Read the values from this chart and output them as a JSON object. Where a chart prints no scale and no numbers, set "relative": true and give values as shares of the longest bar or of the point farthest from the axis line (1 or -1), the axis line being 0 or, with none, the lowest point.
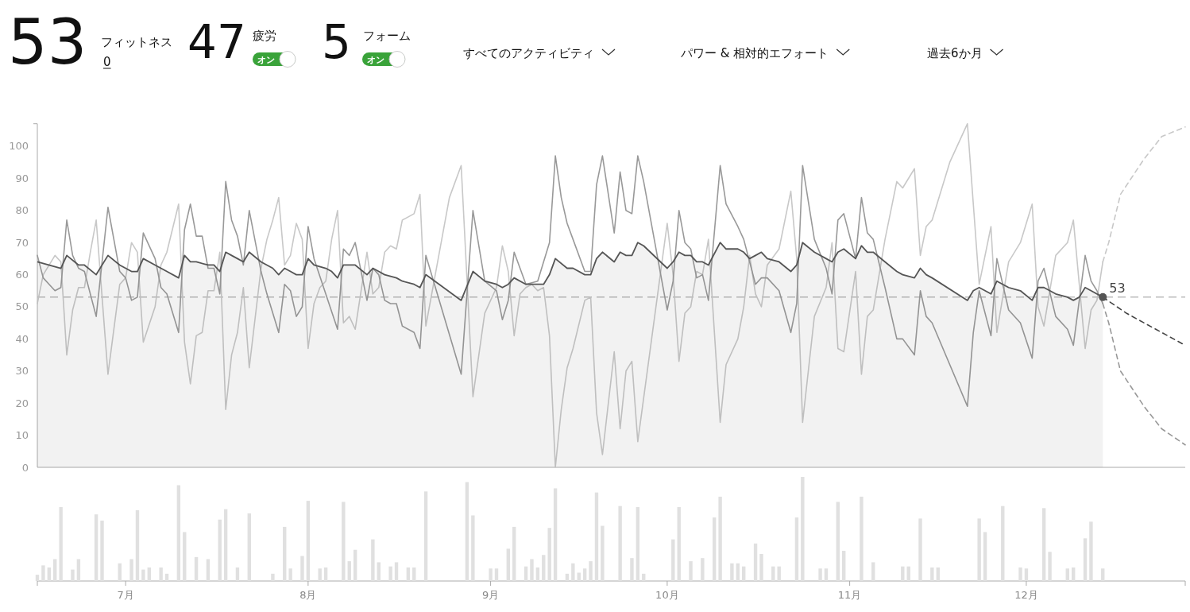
{
  "chart_data": [
    {
      "type": "line",
      "annotations": [
        "53",
        "フィットネス",
        "0",
        "47",
        "疲労",
        "オン",
        "5",
        "フォーム",
        "オン",
        "すべてのアクティビティ",
        "パワー & 相対的エフォート",
        "過去6か月"
      ],
      "xlim": [
        "--06-16",
        "--12-28"
      ],
      "ylim": [
        0,
        107
      ],
      "yticks": [
        0,
        10,
        20,
        30,
        40,
        50,
        60,
        70,
        80,
        90,
        100
      ],
      "tick_labels": "y",
      "ref_lines": [
        {
          "axis": "y",
          "value": 53,
          "label": "53",
          "color": "#bbbbbb",
          "line_style": "dashed"
        }
      ],
      "series": [
        {
          "color": "#c8c8c8",
          "x": [
            "--06-16",
            "--06-17",
            "--06-19",
            "--06-20",
            "--06-21",
            "--06-22",
            "--06-23",
            "--06-24",
            "--06-25",
            "--06-26",
            "--06-28",
            "--06-30",
            "--07-01",
            "--07-02",
            "--07-03",
            "--07-04",
            "--07-06",
            "--07-07",
            "--07-08",
            "--07-10",
            "--07-11",
            "--07-12",
            "--07-13",
            "--07-14",
            "--07-15",
            "--07-16",
            "--07-17",
            "--07-18",
            "--07-19",
            "--07-20",
            "--07-21",
            "--07-22",
            "--07-24",
            "--07-25",
            "--07-26",
            "--07-27",
            "--07-28",
            "--07-29",
            "--07-30",
            "--07-31",
            "--08-01",
            "--08-02",
            "--08-03",
            "--08-04",
            "--08-05",
            "--08-06",
            "--08-07",
            "--08-08",
            "--08-09",
            "--08-11",
            "--08-12",
            "--08-13",
            "--08-14",
            "--08-15",
            "--08-16",
            "--08-17",
            "--08-19",
            "--08-20",
            "--08-21",
            "--08-25",
            "--08-27",
            "--08-29",
            "--08-31",
            "--09-02",
            "--09-03",
            "--09-04",
            "--09-05",
            "--09-06",
            "--09-07",
            "--09-08",
            "--09-09",
            "--09-10",
            "--09-11",
            "--09-12",
            "--09-13",
            "--09-14",
            "--09-15",
            "--09-17",
            "--09-18",
            "--09-19",
            "--09-20",
            "--09-22",
            "--09-23",
            "--09-24",
            "--09-25",
            "--09-26",
            "--10-01",
            "--10-02",
            "--10-03",
            "--10-04",
            "--10-05",
            "--10-06",
            "--10-07",
            "--10-08",
            "--10-10",
            "--10-11",
            "--10-13",
            "--10-14",
            "--10-15",
            "--10-16",
            "--10-17",
            "--10-18",
            "--10-20",
            "--10-22",
            "--10-23",
            "--10-24",
            "--10-26",
            "--10-28",
            "--10-29",
            "--10-30",
            "--10-31",
            "--11-02",
            "--11-03",
            "--11-04",
            "--11-05",
            "--11-07",
            "--11-09",
            "--11-10",
            "--11-12",
            "--11-13",
            "--11-14",
            "--11-15",
            "--11-18",
            "--11-21",
            "--11-23",
            "--11-25",
            "--11-26",
            "--11-28",
            "--11-30",
            "--12-02",
            "--12-03",
            "--12-04",
            "--12-06",
            "--12-08",
            "--12-09",
            "--12-11",
            "--12-12",
            "--12-13",
            "--12-14"
          ],
          "values": [
            51,
            60,
            66,
            64,
            35,
            49,
            56,
            56,
            67,
            77,
            29,
            57,
            59,
            70,
            67,
            39,
            50,
            63,
            67,
            82,
            39,
            26,
            41,
            42,
            55,
            55,
            67,
            18,
            35,
            42,
            56,
            31,
            62,
            71,
            77,
            84,
            63,
            66,
            76,
            71,
            37,
            51,
            56,
            58,
            71,
            80,
            45,
            47,
            43,
            67,
            54,
            56,
            67,
            69,
            68,
            77,
            79,
            85,
            44,
            84,
            94,
            22,
            48,
            56,
            69,
            61,
            41,
            54,
            56,
            57,
            55,
            56,
            41,
            0,
            18,
            31,
            37,
            52,
            53,
            17,
            4,
            36,
            12,
            30,
            33,
            8,
            76,
            60,
            33,
            48,
            50,
            61,
            60,
            71,
            14,
            32,
            40,
            50,
            66,
            54,
            50,
            63,
            68,
            86,
            65,
            14,
            47,
            56,
            70,
            37,
            36,
            61,
            29,
            47,
            49,
            71,
            89,
            87,
            93,
            66,
            75,
            77,
            95,
            107,
            57,
            75,
            42,
            64,
            70,
            82,
            50,
            44,
            66,
            70,
            77,
            37,
            49,
            52,
            64
          ]
        },
        {
          "color": "#999999",
          "x": [
            "--06-16",
            "--06-17",
            "--06-18",
            "--06-19",
            "--06-20",
            "--06-21",
            "--06-22",
            "--06-23",
            "--06-24",
            "--06-26",
            "--06-28",
            "--06-30",
            "--07-01",
            "--07-02",
            "--07-03",
            "--07-04",
            "--07-06",
            "--07-07",
            "--07-08",
            "--07-10",
            "--07-11",
            "--07-12",
            "--07-13",
            "--07-14",
            "--07-15",
            "--07-16",
            "--07-17",
            "--07-18",
            "--07-19",
            "--07-20",
            "--07-21",
            "--07-22",
            "--07-24",
            "--07-25",
            "--07-27",
            "--07-28",
            "--07-29",
            "--07-30",
            "--07-31",
            "--08-01",
            "--08-02",
            "--08-06",
            "--08-07",
            "--08-08",
            "--08-09",
            "--08-11",
            "--08-12",
            "--08-13",
            "--08-14",
            "--08-15",
            "--08-16",
            "--08-17",
            "--08-19",
            "--08-20",
            "--08-21",
            "--08-27",
            "--08-29",
            "--08-31",
            "--09-02",
            "--09-03",
            "--09-04",
            "--09-05",
            "--09-07",
            "--09-09",
            "--09-11",
            "--09-12",
            "--09-13",
            "--09-14",
            "--09-15",
            "--09-17",
            "--09-18",
            "--09-19",
            "--09-20",
            "--09-22",
            "--09-23",
            "--09-24",
            "--09-25",
            "--09-26",
            "--09-27",
            "--10-01",
            "--10-02",
            "--10-03",
            "--10-04",
            "--10-05",
            "--10-06",
            "--10-07",
            "--10-08",
            "--10-10",
            "--10-11",
            "--10-13",
            "--10-14",
            "--10-16",
            "--10-17",
            "--10-18",
            "--10-20",
            "--10-22",
            "--10-23",
            "--10-24",
            "--10-26",
            "--10-28",
            "--10-29",
            "--10-30",
            "--10-31",
            "--11-02",
            "--11-03",
            "--11-04",
            "--11-05",
            "--11-07",
            "--11-09",
            "--11-10",
            "--11-12",
            "--11-13",
            "--11-14",
            "--11-15",
            "--11-21",
            "--11-22",
            "--11-23",
            "--11-25",
            "--11-26",
            "--11-28",
            "--11-30",
            "--12-02",
            "--12-03",
            "--12-04",
            "--12-06",
            "--12-08",
            "--12-09",
            "--12-11",
            "--12-12",
            "--12-13",
            "--12-14"
          ],
          "values": [
            66,
            59,
            57,
            55,
            56,
            77,
            66,
            62,
            61,
            47,
            81,
            61,
            59,
            52,
            53,
            73,
            65,
            56,
            54,
            42,
            74,
            82,
            72,
            72,
            62,
            62,
            54,
            89,
            77,
            72,
            63,
            80,
            61,
            54,
            42,
            57,
            55,
            47,
            50,
            75,
            65,
            43,
            68,
            66,
            70,
            52,
            62,
            60,
            52,
            51,
            51,
            44,
            42,
            37,
            66,
            29,
            80,
            58,
            55,
            46,
            52,
            67,
            57,
            58,
            70,
            97,
            84,
            76,
            71,
            61,
            61,
            88,
            97,
            73,
            92,
            80,
            79,
            97,
            89,
            49,
            58,
            80,
            70,
            68,
            59,
            60,
            52,
            94,
            82,
            75,
            71,
            57,
            59,
            59,
            55,
            42,
            51,
            94,
            71,
            62,
            54,
            77,
            79,
            65,
            84,
            73,
            71,
            56,
            40,
            40,
            35,
            55,
            47,
            45,
            19,
            42,
            55,
            41,
            65,
            49,
            45,
            34,
            58,
            62,
            47,
            43,
            38,
            66,
            58,
            55,
            51
          ]
        },
        {
          "type": "area",
          "color": "#555555",
          "x": [
            "--06-16",
            "--06-20",
            "--06-21",
            "--06-23",
            "--06-24",
            "--06-26",
            "--06-28",
            "--06-30",
            "--07-01",
            "--07-02",
            "--07-03",
            "--07-04",
            "--07-06",
            "--07-07",
            "--07-08",
            "--07-10",
            "--07-11",
            "--07-12",
            "--07-13",
            "--07-15",
            "--07-16",
            "--07-17",
            "--07-18",
            "--07-19",
            "--07-20",
            "--07-21",
            "--07-22",
            "--07-24",
            "--07-26",
            "--07-27",
            "--07-28",
            "--07-29",
            "--07-30",
            "--07-31",
            "--08-01",
            "--08-02",
            "--08-04",
            "--08-05",
            "--08-06",
            "--08-07",
            "--08-08",
            "--08-09",
            "--08-11",
            "--08-12",
            "--08-13",
            "--08-14",
            "--08-16",
            "--08-17",
            "--08-19",
            "--08-20",
            "--08-21",
            "--08-27",
            "--08-29",
            "--08-31",
            "--09-02",
            "--09-03",
            "--09-04",
            "--09-05",
            "--09-07",
            "--09-09",
            "--09-10",
            "--09-11",
            "--09-12",
            "--09-14",
            "--09-15",
            "--09-17",
            "--09-18",
            "--09-19",
            "--09-20",
            "--09-22",
            "--09-23",
            "--09-24",
            "--09-25",
            "--09-26",
            "--09-27",
            "--10-01",
            "--10-02",
            "--10-03",
            "--10-04",
            "--10-05",
            "--10-06",
            "--10-07",
            "--10-08",
            "--10-10",
            "--10-11",
            "--10-13",
            "--10-14",
            "--10-15",
            "--10-16",
            "--10-17",
            "--10-18",
            "--10-20",
            "--10-22",
            "--10-23",
            "--10-24",
            "--10-26",
            "--10-28",
            "--10-29",
            "--10-30",
            "--10-31",
            "--11-02",
            "--11-03",
            "--11-04",
            "--11-05",
            "--11-07",
            "--11-09",
            "--11-10",
            "--11-12",
            "--11-13",
            "--11-14",
            "--11-15",
            "--11-21",
            "--11-22",
            "--11-23",
            "--11-25",
            "--11-26",
            "--11-28",
            "--11-30",
            "--12-02",
            "--12-03",
            "--12-04",
            "--12-06",
            "--12-08",
            "--12-09",
            "--12-10",
            "--12-11",
            "--12-12",
            "--12-14"
          ],
          "values": [
            64,
            62,
            66,
            63,
            63,
            60,
            66,
            63,
            62,
            61,
            61,
            65,
            63,
            62,
            61,
            59,
            66,
            64,
            64,
            63,
            63,
            61,
            67,
            66,
            65,
            64,
            67,
            64,
            62,
            60,
            62,
            61,
            60,
            60,
            65,
            63,
            62,
            61,
            59,
            63,
            63,
            63,
            60,
            62,
            61,
            60,
            59,
            58,
            57,
            56,
            60,
            52,
            61,
            58,
            57,
            56,
            57,
            59,
            57,
            57,
            57,
            60,
            65,
            62,
            62,
            60,
            60,
            65,
            67,
            64,
            67,
            66,
            66,
            70,
            69,
            62,
            64,
            67,
            66,
            66,
            64,
            64,
            63,
            70,
            68,
            68,
            67,
            65,
            66,
            67,
            65,
            64,
            61,
            63,
            70,
            67,
            65,
            64,
            67,
            68,
            65,
            69,
            67,
            67,
            64,
            61,
            60,
            59,
            62,
            60,
            59,
            52,
            55,
            56,
            54,
            58,
            56,
            55,
            52,
            56,
            56,
            54,
            53,
            52,
            53,
            56,
            55,
            53
          ]
        },
        {
          "line_style": "dashed",
          "color": "#c8c8c8",
          "x": [
            "--12-14",
            "--12-15",
            "--12-17",
            "--12-21",
            "--12-24",
            "--12-28"
          ],
          "values": [
            64,
            70,
            85,
            96,
            103,
            106
          ]
        },
        {
          "line_style": "dashed",
          "color": "#999999",
          "x": [
            "--12-14",
            "--12-15",
            "--12-17",
            "--12-21",
            "--12-24",
            "--12-28"
          ],
          "values": [
            51,
            45,
            30,
            19,
            12,
            7
          ]
        },
        {
          "line_style": "dashed",
          "color": "#444444",
          "x": [
            "--12-14",
            "--12-18",
            "--12-23",
            "--12-28"
          ],
          "values": [
            53,
            48,
            43,
            38
          ]
        },
        {
          "type": "scatter",
          "color": "#555555",
          "x": [
            "--12-14"
          ],
          "values": [
            53
          ]
        }
      ]
    },
    {
      "type": "bar",
      "relative": true,
      "color": "#e0e0e0",
      "xlim": [
        "--06-16",
        "--12-28"
      ],
      "tick_labels": "x",
      "xticks": [
        {
          "value": "--06-16",
          "label": null
        },
        {
          "value": "--07-01",
          "label": "7月"
        },
        {
          "value": "--08-01",
          "label": "8月"
        },
        {
          "value": "--09-01",
          "label": "9月"
        },
        {
          "value": "--10-01",
          "label": "10月"
        },
        {
          "value": "--11-01",
          "label": "11月"
        },
        {
          "value": "--12-01",
          "label": "12月"
        },
        {
          "value": "--12-28",
          "label": null
        }
      ],
      "x": [
        "--06-16",
        "--06-17",
        "--06-18",
        "--06-19",
        "--06-20",
        "--06-22",
        "--06-23",
        "--06-26",
        "--06-27",
        "--06-30",
        "--07-02",
        "--07-03",
        "--07-04",
        "--07-05",
        "--07-07",
        "--07-08",
        "--07-10",
        "--07-11",
        "--07-13",
        "--07-15",
        "--07-17",
        "--07-18",
        "--07-20",
        "--07-22",
        "--07-26",
        "--07-28",
        "--07-29",
        "--07-31",
        "--08-01",
        "--08-03",
        "--08-04",
        "--08-07",
        "--08-08",
        "--08-09",
        "--08-12",
        "--08-13",
        "--08-15",
        "--08-16",
        "--08-18",
        "--08-19",
        "--08-21",
        "--08-28",
        "--08-29",
        "--09-01",
        "--09-02",
        "--09-04",
        "--09-05",
        "--09-07",
        "--09-08",
        "--09-09",
        "--09-10",
        "--09-11",
        "--09-12",
        "--09-14",
        "--09-15",
        "--09-16",
        "--09-17",
        "--09-18",
        "--09-19",
        "--09-20",
        "--09-23",
        "--09-25",
        "--09-26",
        "--09-27",
        "--10-02",
        "--10-03",
        "--10-05",
        "--10-07",
        "--10-09",
        "--10-10",
        "--10-12",
        "--10-13",
        "--10-14",
        "--10-16",
        "--10-17",
        "--10-19",
        "--10-20",
        "--10-23",
        "--10-24",
        "--10-27",
        "--10-28",
        "--10-30",
        "--10-31",
        "--11-03",
        "--11-05",
        "--11-10",
        "--11-11",
        "--11-13",
        "--11-15",
        "--11-16",
        "--11-23",
        "--11-24",
        "--11-27",
        "--11-30",
        "--12-01",
        "--12-04",
        "--12-05",
        "--12-08",
        "--12-09",
        "--12-11",
        "--12-12",
        "--12-14"
      ],
      "values": [
        0.06,
        0.15,
        0.13,
        0.21,
        0.71,
        0.11,
        0.21,
        0.64,
        0.58,
        0.17,
        0.21,
        0.68,
        0.11,
        0.13,
        0.13,
        0.07,
        0.92,
        0.47,
        0.23,
        0.21,
        0.59,
        0.69,
        0.13,
        0.65,
        0.07,
        0.52,
        0.12,
        0.24,
        0.77,
        0.12,
        0.13,
        0.76,
        0.19,
        0.3,
        0.4,
        0.18,
        0.14,
        0.18,
        0.13,
        0.13,
        0.86,
        0.95,
        0.63,
        0.12,
        0.12,
        0.31,
        0.52,
        0.14,
        0.21,
        0.13,
        0.25,
        0.51,
        0.89,
        0.07,
        0.17,
        0.08,
        0.12,
        0.19,
        0.85,
        0.53,
        0.72,
        0.22,
        0.71,
        0.07,
        0.4,
        0.71,
        0.19,
        0.22,
        0.61,
        0.81,
        0.17,
        0.17,
        0.14,
        0.36,
        0.26,
        0.14,
        0.14,
        0.61,
        1,
        0.12,
        0.12,
        0.76,
        0.29,
        0.81,
        0.18,
        0.14,
        0.14,
        0.6,
        0.13,
        0.13,
        0.6,
        0.47,
        0.72,
        0.13,
        0.12,
        0.7,
        0.28,
        0.12,
        0.13,
        0.41,
        0.57,
        0.12
      ]
    }
  ]
}
